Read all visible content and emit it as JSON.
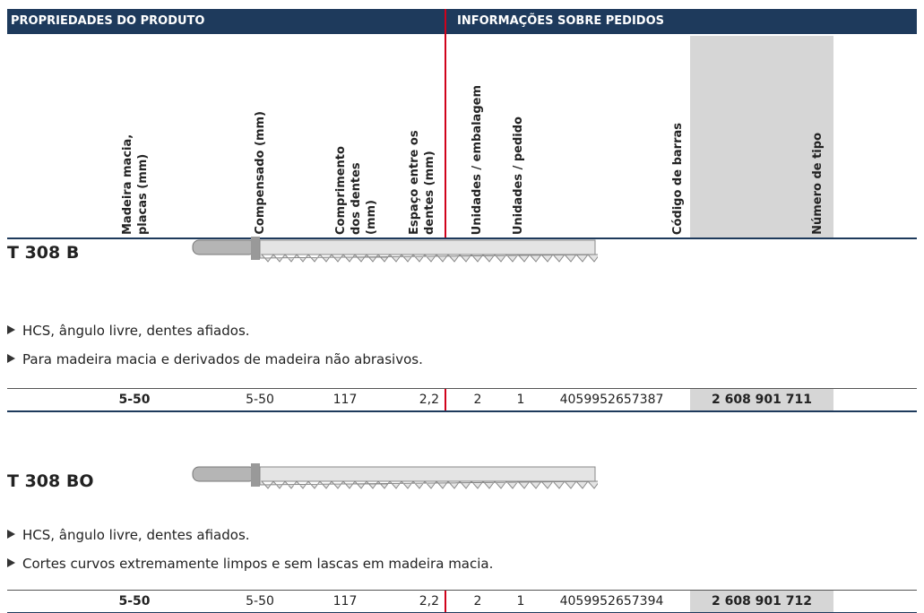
{
  "header": {
    "left": "PROPRIEDADES DO PRODUTO",
    "right": "INFORMAÇÕES SOBRE PEDIDOS"
  },
  "columns": [
    "Madeira macia, placas (mm)",
    "Compensado (mm)",
    "Comprimento dos dentes (mm)",
    "Espaço entre os dentes (mm)",
    "Unidades / embalagem",
    "Unidades / pedido",
    "Código de barras",
    "Número de tipo"
  ],
  "products": [
    {
      "name": "T 308 B",
      "bullets": [
        "HCS, ângulo livre, dentes afiados.",
        "Para madeira macia e derivados de madeira não abrasivos."
      ],
      "row": [
        "5-50",
        "5-50",
        "117",
        "2,2",
        "2",
        "1",
        "4059952657387",
        "2 608 901 711"
      ]
    },
    {
      "name": "T 308 BO",
      "bullets": [
        "HCS, ângulo livre, dentes afiados.",
        "Cortes curvos extremamente limpos e sem lascas em madeira macia."
      ],
      "row": [
        "5-50",
        "5-50",
        "117",
        "2,2",
        "2",
        "1",
        "4059952657394",
        "2 608 901 712"
      ]
    }
  ]
}
